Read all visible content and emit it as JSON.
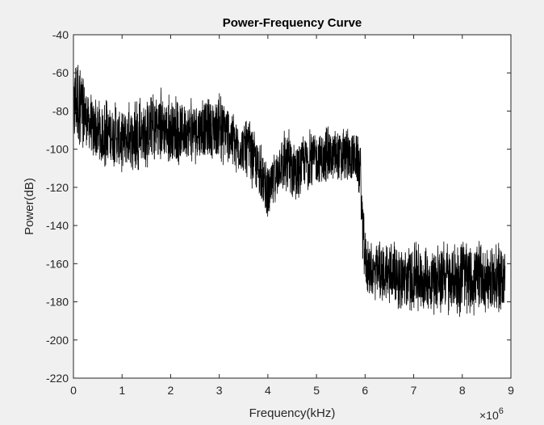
{
  "colors": {
    "figure_background": "#f0f0f0",
    "axes_background": "#ffffff",
    "axis": "#262626",
    "signal": "#000000"
  },
  "chart_data": {
    "type": "line",
    "title": "Power-Frequency Curve",
    "xlabel": "Frequency(kHz)",
    "ylabel": "Power(dB)",
    "x_exponent": {
      "base": "×10",
      "power": "6"
    },
    "xlim": [
      0,
      9
    ],
    "ylim": [
      -220,
      -40
    ],
    "xticks": [
      0,
      1,
      2,
      3,
      4,
      5,
      6,
      7,
      8,
      9
    ],
    "xtick_labels": [
      "0",
      "1",
      "2",
      "3",
      "4",
      "5",
      "6",
      "7",
      "8",
      "9"
    ],
    "yticks": [
      -40,
      -60,
      -80,
      -100,
      -120,
      -140,
      -160,
      -180,
      -200,
      -220
    ],
    "ytick_labels": [
      "-40",
      "-60",
      "-80",
      "-100",
      "-120",
      "-140",
      "-160",
      "-180",
      "-200",
      "-220"
    ],
    "grid": false,
    "series": [
      {
        "x_unit_scale": "×10^6",
        "x_range": [
          0,
          8.88
        ],
        "envelope": [
          {
            "x": 0.0,
            "upper": -60,
            "lower": -108
          },
          {
            "x": 0.05,
            "upper": -42,
            "lower": -104
          },
          {
            "x": 0.15,
            "upper": -52,
            "lower": -100
          },
          {
            "x": 0.3,
            "upper": -68,
            "lower": -104
          },
          {
            "x": 0.5,
            "upper": -74,
            "lower": -110
          },
          {
            "x": 0.75,
            "upper": -74,
            "lower": -110
          },
          {
            "x": 1.0,
            "upper": -76,
            "lower": -114
          },
          {
            "x": 1.25,
            "upper": -74,
            "lower": -112
          },
          {
            "x": 1.5,
            "upper": -72,
            "lower": -110
          },
          {
            "x": 1.75,
            "upper": -66,
            "lower": -108
          },
          {
            "x": 2.0,
            "upper": -72,
            "lower": -110
          },
          {
            "x": 2.5,
            "upper": -72,
            "lower": -108
          },
          {
            "x": 3.0,
            "upper": -70,
            "lower": -108
          },
          {
            "x": 3.2,
            "upper": -72,
            "lower": -110
          },
          {
            "x": 3.3,
            "upper": -82,
            "lower": -112
          },
          {
            "x": 3.6,
            "upper": -84,
            "lower": -118
          },
          {
            "x": 3.8,
            "upper": -94,
            "lower": -126
          },
          {
            "x": 4.0,
            "upper": -106,
            "lower": -140
          },
          {
            "x": 4.1,
            "upper": -104,
            "lower": -136
          },
          {
            "x": 4.25,
            "upper": -90,
            "lower": -124
          },
          {
            "x": 4.4,
            "upper": -88,
            "lower": -128
          },
          {
            "x": 4.6,
            "upper": -94,
            "lower": -128
          },
          {
            "x": 4.8,
            "upper": -90,
            "lower": -122
          },
          {
            "x": 5.0,
            "upper": -88,
            "lower": -122
          },
          {
            "x": 5.4,
            "upper": -88,
            "lower": -120
          },
          {
            "x": 5.8,
            "upper": -88,
            "lower": -120
          },
          {
            "x": 5.9,
            "upper": -90,
            "lower": -126
          },
          {
            "x": 5.95,
            "upper": -128,
            "lower": -168
          },
          {
            "x": 6.05,
            "upper": -148,
            "lower": -180
          },
          {
            "x": 7.0,
            "upper": -148,
            "lower": -186
          },
          {
            "x": 8.0,
            "upper": -148,
            "lower": -188
          },
          {
            "x": 8.88,
            "upper": -148,
            "lower": -186
          }
        ]
      }
    ]
  }
}
